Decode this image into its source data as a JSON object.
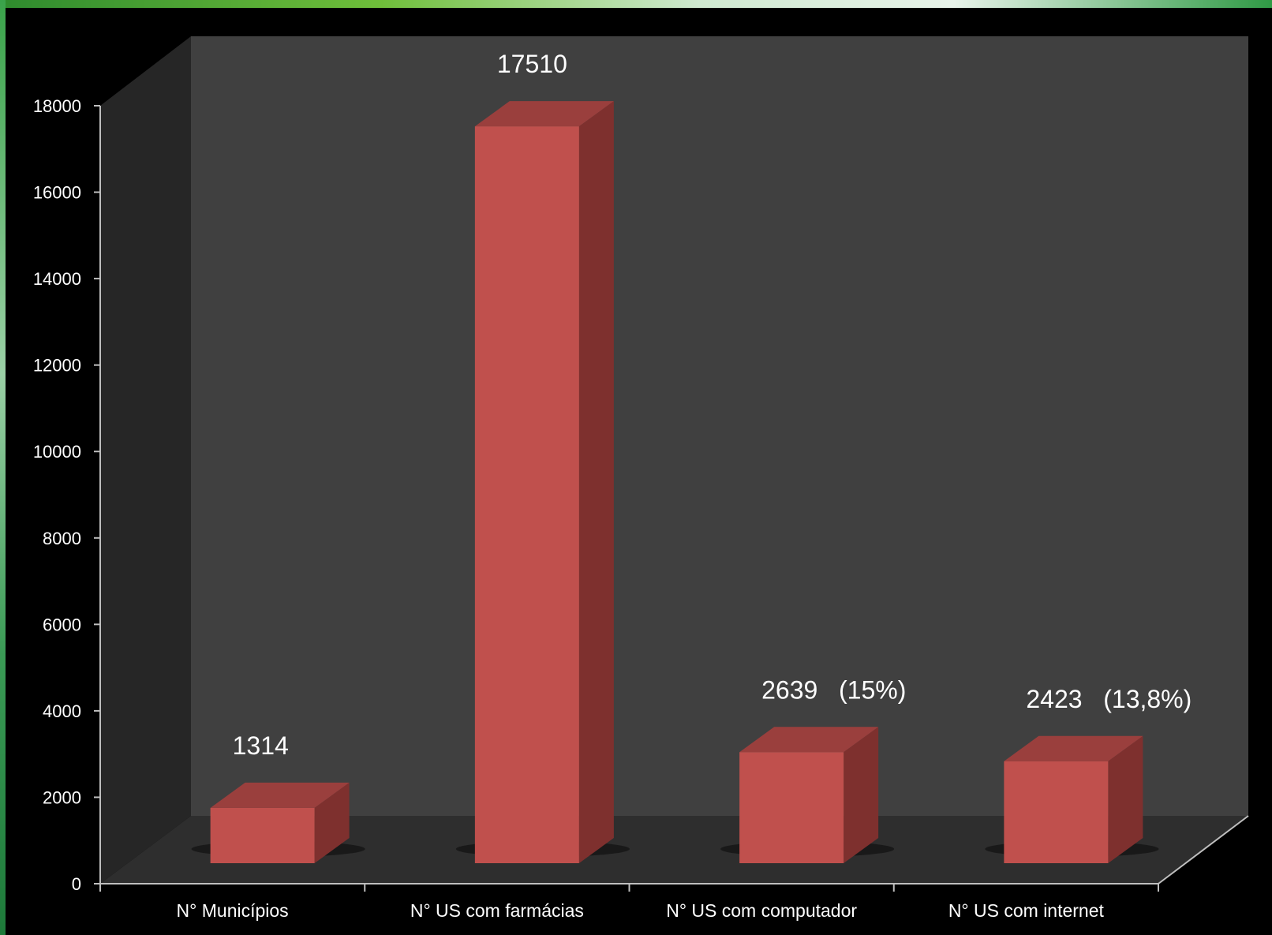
{
  "chart_data": {
    "type": "bar",
    "categories": [
      "N° Municípios",
      "N° US com farmácias",
      "N° US com computador",
      "N° US com internet"
    ],
    "values": [
      1314,
      17510,
      2639,
      2423
    ],
    "data_labels": [
      "1314",
      "17510",
      "2639   (15%)",
      "2423   (13,8%)"
    ],
    "ylim": [
      0,
      18000
    ],
    "yticks": [
      0,
      2000,
      4000,
      6000,
      8000,
      10000,
      12000,
      14000,
      16000,
      18000
    ],
    "grid": false,
    "legend": "none",
    "style": "3d-column"
  },
  "colors": {
    "background": "#000000",
    "back_wall": "#404040",
    "side_wall": "#262626",
    "floor": "#2e2e2e",
    "bar_front": "#c0504d",
    "bar_top": "#9a3f3d",
    "bar_side": "#7e302e",
    "text": "#ffffff"
  }
}
